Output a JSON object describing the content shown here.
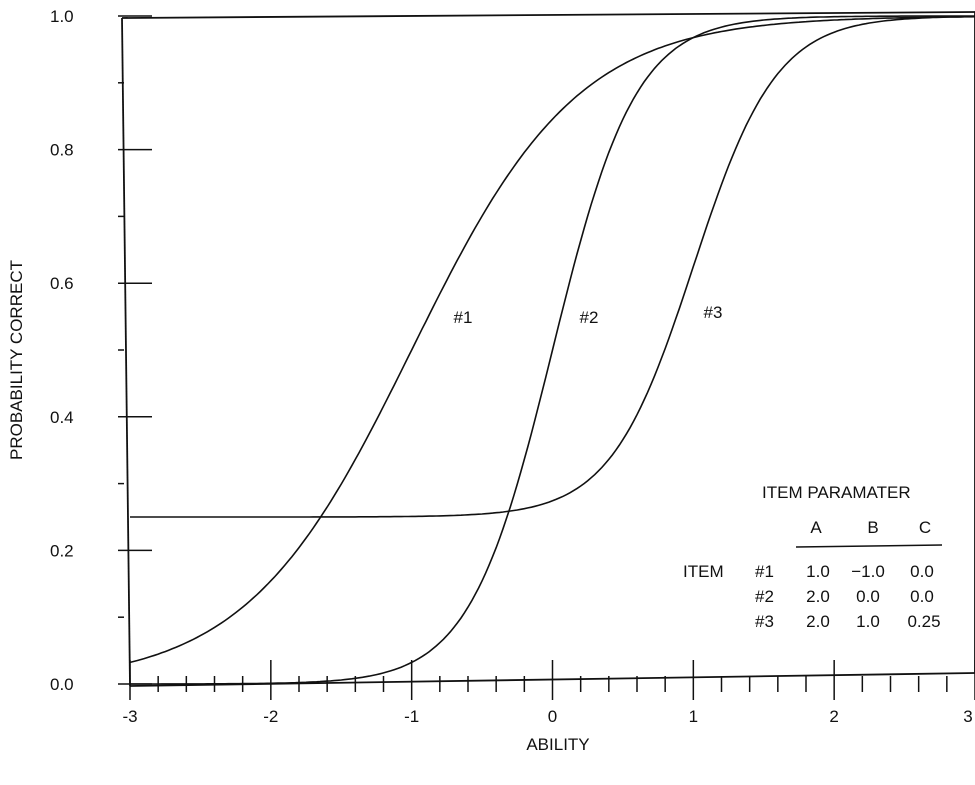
{
  "chart_data": {
    "type": "line",
    "xlabel": "ABILITY",
    "ylabel": "PROBABILITY CORRECT",
    "xlim": [
      -3,
      3
    ],
    "ylim": [
      0,
      1
    ],
    "x_ticks": [
      "-3",
      "-2",
      "-1",
      "0",
      "1",
      "2",
      "3"
    ],
    "y_ticks": [
      "0.0",
      "0.2",
      "0.4",
      "0.6",
      "0.8",
      "1.0"
    ],
    "grid": false,
    "series": [
      {
        "name": "#1",
        "a": 1.0,
        "b": -1.0,
        "c": 0.0,
        "x": [
          -3,
          -2.5,
          -2,
          -1.5,
          -1,
          -0.5,
          0,
          0.5,
          1,
          1.5,
          2,
          2.5,
          3
        ],
        "y": [
          0.03,
          0.07,
          0.15,
          0.3,
          0.5,
          0.7,
          0.85,
          0.93,
          0.97,
          0.99,
          0.995,
          1.0,
          1.0
        ]
      },
      {
        "name": "#2",
        "a": 2.0,
        "b": 0.0,
        "c": 0.0,
        "x": [
          -3,
          -2.5,
          -2,
          -1.5,
          -1,
          -0.5,
          0,
          0.5,
          1,
          1.5,
          2,
          2.5,
          3
        ],
        "y": [
          0.0,
          0.0,
          0.0,
          0.01,
          0.03,
          0.15,
          0.5,
          0.85,
          0.97,
          0.99,
          1.0,
          1.0,
          1.0
        ]
      },
      {
        "name": "#3",
        "a": 2.0,
        "b": 1.0,
        "c": 0.25,
        "x": [
          -3,
          -2.5,
          -2,
          -1.5,
          -1,
          -0.5,
          0,
          0.5,
          1,
          1.5,
          2,
          2.5,
          3
        ],
        "y": [
          0.25,
          0.25,
          0.25,
          0.25,
          0.25,
          0.26,
          0.27,
          0.37,
          0.62,
          0.89,
          0.98,
          1.0,
          1.0
        ]
      }
    ],
    "annotations": [
      "#1",
      "#2",
      "#3"
    ],
    "table": {
      "title": "ITEM PARAMATER",
      "row_label": "ITEM",
      "columns": [
        "A",
        "B",
        "C"
      ],
      "rows": [
        {
          "item": "#1",
          "values": [
            "1.0",
            "−1.0",
            "0.0"
          ]
        },
        {
          "item": "#2",
          "values": [
            "2.0",
            "0.0",
            "0.0"
          ]
        },
        {
          "item": "#3",
          "values": [
            "2.0",
            "1.0",
            "0.25"
          ]
        }
      ]
    }
  }
}
